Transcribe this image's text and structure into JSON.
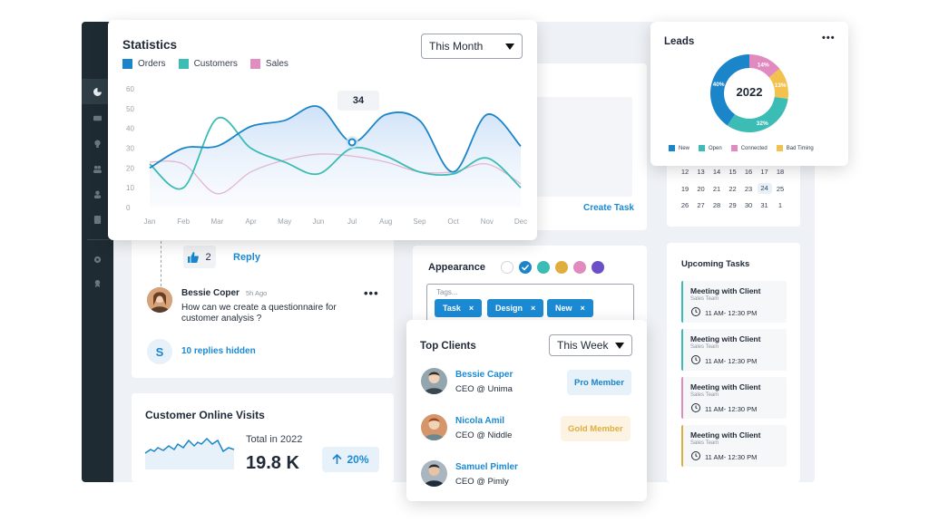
{
  "statistics": {
    "title": "Statistics",
    "dropdown": "This Month",
    "legend": [
      {
        "label": "Orders",
        "color": "#1b85c9"
      },
      {
        "label": "Customers",
        "color": "#3bbcb4"
      },
      {
        "label": "Sales",
        "color": "#de8fc0"
      }
    ],
    "tooltip": "34"
  },
  "chart_data": {
    "type": "line",
    "categories": [
      "Jan",
      "Feb",
      "Mar",
      "Apr",
      "May",
      "Jun",
      "Jul",
      "Aug",
      "Sep",
      "Oct",
      "Nov",
      "Dec"
    ],
    "y_ticks": [
      "60",
      "50",
      "40",
      "30",
      "20",
      "10",
      "0"
    ],
    "ylim": [
      0,
      60
    ],
    "series": [
      {
        "name": "Orders",
        "color": "#1b85c9",
        "values": [
          20,
          30,
          31,
          41,
          44,
          51,
          33,
          47,
          44,
          18,
          47,
          31
        ]
      },
      {
        "name": "Customers",
        "color": "#3bbcb4",
        "values": [
          22,
          10,
          45,
          30,
          23,
          17,
          30,
          26,
          18,
          17,
          25,
          10
        ]
      },
      {
        "name": "Sales",
        "color": "#e3b6d1",
        "values": [
          23,
          22,
          7,
          18,
          24,
          27,
          26,
          23,
          18,
          18,
          22,
          12
        ]
      }
    ]
  },
  "leads": {
    "title": "Leads",
    "year": "2022",
    "segments": [
      {
        "label": "New",
        "value": 40,
        "text": "40%",
        "color": "#1b85c9"
      },
      {
        "label": "Open",
        "value": 32,
        "text": "32%",
        "color": "#3bbcb4"
      },
      {
        "label": "Connected",
        "value": 14,
        "text": "14%",
        "color": "#e08ac0"
      },
      {
        "label": "Bad Timing",
        "value": 13,
        "text": "13%",
        "color": "#f2c14e"
      }
    ]
  },
  "calendar": {
    "rows": [
      [
        "12",
        "13",
        "14",
        "15",
        "16",
        "17",
        "18"
      ],
      [
        "19",
        "20",
        "21",
        "22",
        "23",
        "24",
        "25"
      ],
      [
        "26",
        "27",
        "28",
        "29",
        "30",
        "31",
        "1"
      ]
    ],
    "selected": "24"
  },
  "create_task": "Create Task",
  "comments": {
    "likes": "2",
    "reply": "Reply",
    "author": "Bessie Coper",
    "time": "5h Ago",
    "text_line1": "How can we create a questionnaire for",
    "text_line2": "customer analysis ?",
    "replies_initial": "S",
    "replies_hidden": "10 replies hidden"
  },
  "visits": {
    "title": "Customer Online Visits",
    "total_label": "Total in 2022",
    "total_value": "19.8 K",
    "change": "20%"
  },
  "appearance": {
    "title": "Appearance",
    "colors": [
      "#ffffff",
      "#1b85c9",
      "#3bbcb4",
      "#e0ae3f",
      "#e08ac0",
      "#6a4fc7"
    ],
    "tags_placeholder": "Tags...",
    "tags": [
      "Task",
      "Design",
      "New"
    ]
  },
  "top_clients": {
    "title": "Top Clients",
    "dropdown": "This Week",
    "clients": [
      {
        "name": "Bessie Caper",
        "role": "CEO @ Unima",
        "badge": "Pro Member",
        "badge_bg": "#e6f1fa",
        "badge_fg": "#1b85c9"
      },
      {
        "name": "Nicola Amil",
        "role": "CEO @ Niddle",
        "badge": "Gold Member",
        "badge_bg": "#fdf3e3",
        "badge_fg": "#e0ae3f"
      },
      {
        "name": "Samuel Pimler",
        "role": "CEO @ Pimly",
        "badge": "",
        "badge_bg": "",
        "badge_fg": ""
      }
    ]
  },
  "upcoming": {
    "title": "Upcoming Tasks",
    "tasks": [
      {
        "title": "Meeting with Client",
        "team": "Sales Team",
        "time": "11 AM- 12:30 PM",
        "color": "#3bbcb4"
      },
      {
        "title": "Meeting with Client",
        "team": "Sales Team",
        "time": "11 AM- 12:30 PM",
        "color": "#3bbcb4"
      },
      {
        "title": "Meeting with Client",
        "team": "Sales Team",
        "time": "11 AM- 12:30 PM",
        "color": "#e08ac0"
      },
      {
        "title": "Meeting with Client",
        "team": "Sales Team",
        "time": "11 AM- 12:30 PM",
        "color": "#e0ae3f"
      }
    ]
  }
}
